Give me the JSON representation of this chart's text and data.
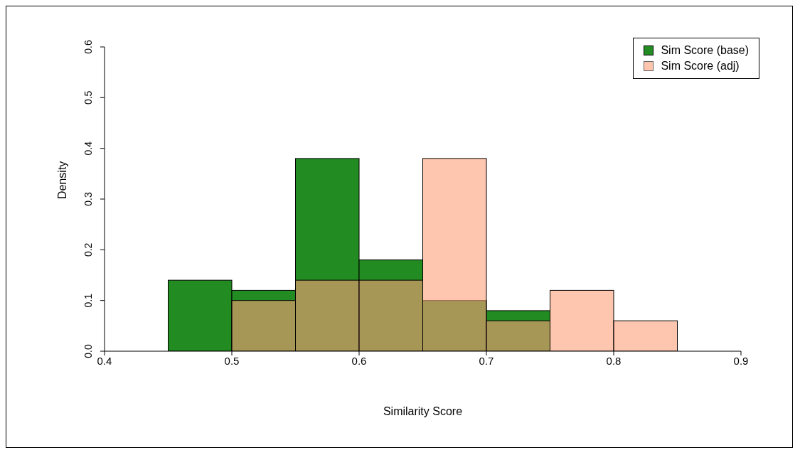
{
  "chart_data": {
    "type": "histogram",
    "xlabel": "Similarity Score",
    "ylabel": "Density",
    "bins": [
      0.45,
      0.5,
      0.55,
      0.6,
      0.65,
      0.7,
      0.75,
      0.8,
      0.85
    ],
    "series": [
      {
        "name": "Sim Score (base)",
        "color": "#228b22",
        "values": [
          0.14,
          0.12,
          0.38,
          0.18,
          0.1,
          0.08,
          0,
          0
        ]
      },
      {
        "name": "Sim Score (adj)",
        "color": "#ffa07a",
        "values": [
          0,
          0.1,
          0.14,
          0.14,
          0.38,
          0.06,
          0.12,
          0.06
        ]
      }
    ],
    "xlim": [
      0.4,
      0.9
    ],
    "xticks": [
      0.4,
      0.5,
      0.6,
      0.7,
      0.8,
      0.9
    ],
    "ylim": [
      0,
      0.6
    ],
    "yticks": [
      {
        "value": 0,
        "label": "0.0"
      },
      0.1,
      0.2,
      0.3,
      0.4,
      0.5,
      0.6
    ],
    "grid": false,
    "legend": "top right"
  }
}
